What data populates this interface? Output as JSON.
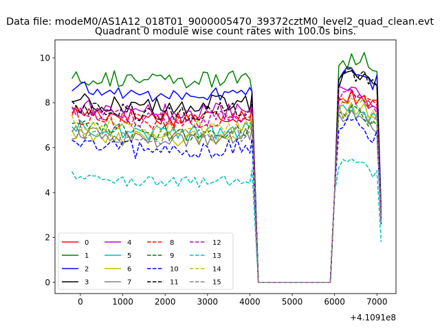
{
  "figure": {
    "suptitle": "Data file: modeM0/AS1A12_018T01_9000005470_39372cztM0_level2_quad_clean.evt"
  },
  "chart_data": {
    "type": "line",
    "title": "Quadrant 0 module wise count rates with 100.0s bins.",
    "xlabel": "",
    "ylabel": "",
    "x_offset_label": "+4.1091e8",
    "xlim": [
      -600,
      7450
    ],
    "ylim": [
      -0.5,
      10.8
    ],
    "x_ticks": [
      0,
      1000,
      2000,
      3000,
      4000,
      5000,
      6000,
      7000
    ],
    "y_ticks": [
      0,
      2,
      4,
      6,
      8,
      10
    ],
    "grid": false,
    "legend": {
      "placement": "lower-left",
      "columns": 4
    },
    "x_segment_1": [
      -200,
      4000,
      100
    ],
    "x_segment_2": [
      6100,
      7100,
      100
    ],
    "drop_points": [
      [
        4050,
        8.5
      ],
      [
        4200,
        0.0
      ],
      [
        5900,
        0.0
      ],
      [
        6000,
        4.0
      ]
    ],
    "series": [
      {
        "name": "0",
        "color": "#ff0000",
        "dash": "solid",
        "base1": 7.6,
        "base2": 8.3,
        "amp": 0.4,
        "end": 3.0
      },
      {
        "name": "1",
        "color": "#008000",
        "dash": "solid",
        "base1": 9.2,
        "base2": 9.9,
        "amp": 0.4,
        "end": 3.2
      },
      {
        "name": "2",
        "color": "#0000ff",
        "dash": "solid",
        "base1": 8.6,
        "base2": 9.3,
        "amp": 0.35,
        "end": 3.1
      },
      {
        "name": "3",
        "color": "#000000",
        "dash": "solid",
        "base1": 8.1,
        "base2": 9.1,
        "amp": 0.45,
        "end": 3.0
      },
      {
        "name": "4",
        "color": "#bf00bf",
        "dash": "solid",
        "base1": 7.8,
        "base2": 8.4,
        "amp": 0.4,
        "end": 2.9
      },
      {
        "name": "5",
        "color": "#00bfbf",
        "dash": "solid",
        "base1": 6.9,
        "base2": 7.6,
        "amp": 0.35,
        "end": 2.8
      },
      {
        "name": "6",
        "color": "#bfbf00",
        "dash": "solid",
        "base1": 6.7,
        "base2": 7.7,
        "amp": 0.4,
        "end": 2.8
      },
      {
        "name": "7",
        "color": "#808080",
        "dash": "solid",
        "base1": 6.6,
        "base2": 7.4,
        "amp": 0.35,
        "end": 2.7
      },
      {
        "name": "8",
        "color": "#ff0000",
        "dash": "dashed",
        "base1": 7.4,
        "base2": 8.2,
        "amp": 0.4,
        "end": 3.0
      },
      {
        "name": "9",
        "color": "#008000",
        "dash": "dashed",
        "base1": 6.9,
        "base2": 7.6,
        "amp": 0.35,
        "end": 2.8
      },
      {
        "name": "10",
        "color": "#0000ff",
        "dash": "dashed",
        "base1": 6.1,
        "base2": 6.9,
        "amp": 0.4,
        "end": 2.6
      },
      {
        "name": "11",
        "color": "#000000",
        "dash": "dashed",
        "base1": 7.8,
        "base2": 9.2,
        "amp": 0.4,
        "end": 2.9
      },
      {
        "name": "12",
        "color": "#bf00bf",
        "dash": "dashed",
        "base1": 7.5,
        "base2": 8.3,
        "amp": 0.4,
        "end": 2.9
      },
      {
        "name": "13",
        "color": "#00bfbf",
        "dash": "dashed",
        "base1": 4.7,
        "base2": 5.3,
        "amp": 0.25,
        "end": 1.8
      },
      {
        "name": "14",
        "color": "#bfbf00",
        "dash": "dashed",
        "base1": 7.1,
        "base2": 7.9,
        "amp": 0.35,
        "end": 2.8
      },
      {
        "name": "15",
        "color": "#808080",
        "dash": "dashed",
        "base1": 6.7,
        "base2": 7.6,
        "amp": 0.35,
        "end": 2.7
      }
    ]
  }
}
